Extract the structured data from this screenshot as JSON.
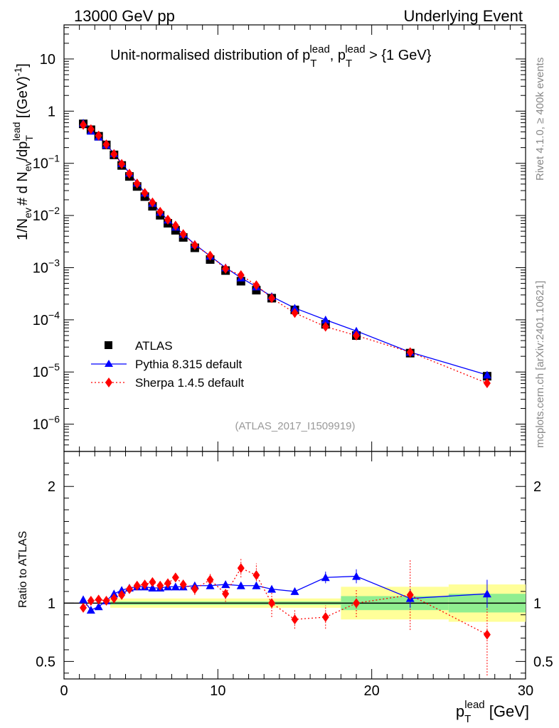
{
  "header": {
    "left": "13000 GeV pp",
    "right": "Underlying Event"
  },
  "side_labels": {
    "rivet": "Rivet 4.1.0, ≥ 400k events",
    "mcplots": "mcplots.cern.ch [arXiv:2401.10621]"
  },
  "colors": {
    "atlas": "#000000",
    "pythia": "#0000ff",
    "sherpa": "#ff0000",
    "band_inner": "#90ee90",
    "band_outer": "#ffff99"
  },
  "chart_data": [
    {
      "type": "scatter",
      "panel": "main",
      "title": "Unit-normalised distribution of p_T^lead, p_T^lead > {1 GeV}",
      "title_parts": {
        "prefix": "Unit-normalised distribution of p",
        "sup": "lead",
        "sub": "T",
        "mid": ", p",
        "suffix": " > {1 GeV}"
      },
      "ylabel": "1/N_ev # d N_ev/dp_T^lead [(GeV)^-1]",
      "ylabel_parts": {
        "a": "1/N",
        "ev1": "ev",
        "b": "# d N",
        "ev2": "ev",
        "c": "/dp",
        "sub": "T",
        "sup": "lead",
        "d": " [(GeV)",
        "exp": "-1",
        "e": "]"
      },
      "xlabel": "p_T^lead [GeV]",
      "yscale": "log",
      "ylim": [
        3e-07,
        45
      ],
      "xlim": [
        0,
        30
      ],
      "ytick_labels": [
        {
          "mant": "10",
          "exp": "",
          "value": 10
        },
        {
          "mant": "1",
          "exp": "",
          "value": 1
        },
        {
          "mant": "10",
          "exp": "−1",
          "value": 0.1
        },
        {
          "mant": "10",
          "exp": "−2",
          "value": 0.01
        },
        {
          "mant": "10",
          "exp": "−3",
          "value": 0.001
        },
        {
          "mant": "10",
          "exp": "−4",
          "value": 0.0001
        },
        {
          "mant": "10",
          "exp": "−5",
          "value": 1e-05
        },
        {
          "mant": "10",
          "exp": "−6",
          "value": 1e-06
        }
      ],
      "watermark": "(ATLAS_2017_I1509919)",
      "legend": [
        "ATLAS",
        "Pythia 8.315 default",
        "Sherpa 1.4.5 default"
      ],
      "legend_position": "lower-left",
      "x": [
        1.25,
        1.75,
        2.25,
        2.75,
        3.25,
        3.75,
        4.25,
        4.75,
        5.25,
        5.75,
        6.25,
        6.75,
        7.25,
        7.75,
        8.5,
        9.5,
        10.5,
        11.5,
        12.5,
        13.5,
        15.0,
        17.0,
        19.0,
        22.5,
        27.5
      ],
      "series": [
        {
          "name": "ATLAS",
          "marker": "square",
          "values": [
            0.57,
            0.44,
            0.33,
            0.225,
            0.145,
            0.091,
            0.056,
            0.036,
            0.023,
            0.015,
            0.0101,
            0.0071,
            0.0052,
            0.0038,
            0.0024,
            0.00143,
            0.00088,
            0.00055,
            0.00037,
            0.00026,
            0.000155,
            8.2e-05,
            5e-05,
            2.3e-05,
            8.3e-06
          ]
        },
        {
          "name": "Pythia 8.315 default",
          "marker": "triangle",
          "line": "solid",
          "values": [
            0.59,
            0.415,
            0.32,
            0.225,
            0.155,
            0.1,
            0.065,
            0.042,
            0.027,
            0.0172,
            0.0116,
            0.0082,
            0.006,
            0.0044,
            0.0028,
            0.00167,
            0.001,
            0.00064,
            0.00043,
            0.00028,
            0.000168,
            0.0001,
            6.1e-05,
            2.4e-05,
            8.8e-06
          ]
        },
        {
          "name": "Sherpa 1.4.5 default",
          "marker": "diamond",
          "line": "dotted",
          "values": [
            0.545,
            0.45,
            0.34,
            0.23,
            0.15,
            0.097,
            0.063,
            0.041,
            0.027,
            0.0178,
            0.0118,
            0.0083,
            0.0064,
            0.0044,
            0.0027,
            0.0017,
            0.00095,
            0.00072,
            0.00046,
            0.00026,
            0.000135,
            7.4e-05,
            5e-05,
            2.4e-05,
            6.1e-06
          ]
        }
      ]
    },
    {
      "type": "scatter",
      "panel": "ratio",
      "ylabel": "Ratio to ATLAS",
      "xlabel": "p_T^lead [GeV]",
      "xlabel_parts": {
        "p": "p",
        "sub": "T",
        "sup": "lead",
        "unit": " [GeV]"
      },
      "xlim": [
        0,
        30
      ],
      "ylim": [
        0.35,
        2.3
      ],
      "xtick_labels": [
        "0",
        "10",
        "20",
        "30"
      ],
      "ytick_labels": [
        "2",
        "1",
        "0.5"
      ],
      "ytick_values": [
        2,
        1,
        0.5
      ],
      "x": [
        1.25,
        1.75,
        2.25,
        2.75,
        3.25,
        3.75,
        4.25,
        4.75,
        5.25,
        5.75,
        6.25,
        6.75,
        7.25,
        7.75,
        8.5,
        9.5,
        10.5,
        11.5,
        12.5,
        13.5,
        15.0,
        17.0,
        19.0,
        22.5,
        27.5
      ],
      "bands": [
        {
          "xmin": 3.0,
          "xmax": 18.0,
          "inner": 0.015,
          "outer": 0.04
        },
        {
          "xmin": 18.0,
          "xmax": 25.0,
          "inner": 0.06,
          "outer": 0.14
        },
        {
          "xmin": 25.0,
          "xmax": 30.0,
          "inner": 0.08,
          "outer": 0.16
        }
      ],
      "series": [
        {
          "name": "Pythia 8.315 default",
          "values": [
            1.03,
            0.94,
            0.97,
            1.02,
            1.08,
            1.11,
            1.13,
            1.14,
            1.14,
            1.13,
            1.13,
            1.14,
            1.14,
            1.14,
            1.15,
            1.15,
            1.16,
            1.15,
            1.15,
            1.12,
            1.1,
            1.22,
            1.23,
            1.04,
            1.08
          ],
          "errors": [
            0.01,
            0.01,
            0.01,
            0.01,
            0.01,
            0.01,
            0.01,
            0.01,
            0.01,
            0.01,
            0.01,
            0.01,
            0.01,
            0.01,
            0.02,
            0.02,
            0.02,
            0.02,
            0.03,
            0.03,
            0.03,
            0.05,
            0.06,
            0.08,
            0.12
          ]
        },
        {
          "name": "Sherpa 1.4.5 default",
          "values": [
            0.96,
            1.02,
            1.03,
            1.02,
            1.04,
            1.07,
            1.12,
            1.15,
            1.16,
            1.18,
            1.15,
            1.17,
            1.22,
            1.16,
            1.12,
            1.2,
            1.08,
            1.3,
            1.24,
            1.0,
            0.86,
            0.88,
            1.0,
            1.07,
            0.73
          ],
          "errors": [
            0.01,
            0.01,
            0.01,
            0.01,
            0.01,
            0.01,
            0.02,
            0.02,
            0.02,
            0.02,
            0.03,
            0.03,
            0.03,
            0.04,
            0.05,
            0.06,
            0.07,
            0.08,
            0.1,
            0.12,
            0.08,
            0.1,
            0.12,
            0.3,
            0.35
          ]
        }
      ]
    }
  ]
}
